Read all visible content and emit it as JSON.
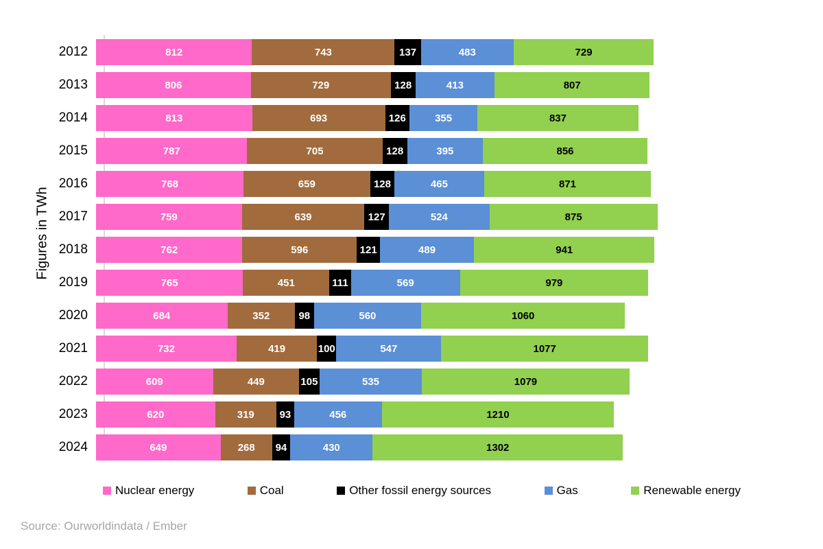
{
  "chart_data": {
    "type": "bar",
    "orientation": "horizontal",
    "stacked": true,
    "ylabel": "Figures in TWh",
    "unit": "TWh",
    "grid": false,
    "legend_position": "bottom",
    "categories": [
      "2012",
      "2013",
      "2014",
      "2015",
      "2016",
      "2017",
      "2018",
      "2019",
      "2020",
      "2021",
      "2022",
      "2023",
      "2024"
    ],
    "series": [
      {
        "name": "Nuclear energy",
        "color": "#FF69C9",
        "label_color": "#FFFFFF",
        "values": [
          812,
          806,
          813,
          787,
          768,
          759,
          762,
          765,
          684,
          732,
          609,
          620,
          649
        ]
      },
      {
        "name": "Coal",
        "color": "#A26B3D",
        "label_color": "#FFFFFF",
        "values": [
          743,
          729,
          693,
          705,
          659,
          639,
          596,
          451,
          352,
          419,
          449,
          319,
          268
        ]
      },
      {
        "name": "Other fossil energy sources",
        "color": "#000000",
        "label_color": "#FFFFFF",
        "values": [
          137,
          128,
          126,
          128,
          128,
          127,
          121,
          111,
          98,
          100,
          105,
          93,
          94
        ]
      },
      {
        "name": "Gas",
        "color": "#5B8FD6",
        "label_color": "#FFFFFF",
        "values": [
          483,
          413,
          355,
          395,
          465,
          524,
          489,
          569,
          560,
          547,
          535,
          456,
          430
        ]
      },
      {
        "name": "Renewable energy",
        "color": "#92D050",
        "label_color": "#000000",
        "values": [
          729,
          807,
          837,
          856,
          871,
          875,
          941,
          979,
          1060,
          1077,
          1079,
          1210,
          1302
        ]
      }
    ]
  },
  "colors": {
    "axis_line": "#D9D9D9",
    "source_text": "#A6A6A6"
  },
  "source": "Source: Ourworldindata / Ember"
}
